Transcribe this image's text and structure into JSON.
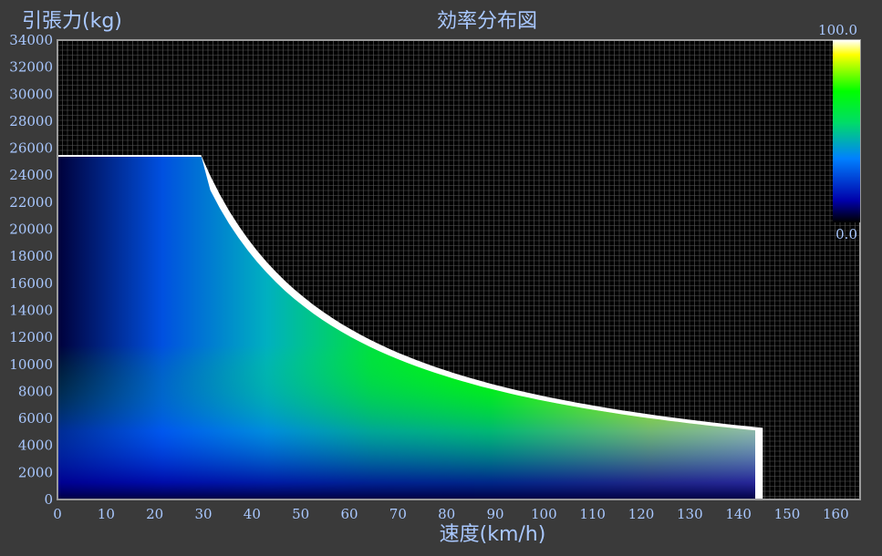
{
  "chart_data": {
    "type": "heatmap",
    "title": "効率分布図",
    "xlabel": "速度(km/h)",
    "ylabel": "引張力(kg)",
    "xlim": [
      0,
      165
    ],
    "ylim": [
      0,
      34000
    ],
    "x_ticks": [
      0,
      10,
      20,
      30,
      40,
      50,
      60,
      70,
      80,
      90,
      100,
      110,
      120,
      130,
      140,
      150,
      160
    ],
    "y_ticks": [
      0,
      2000,
      4000,
      6000,
      8000,
      10000,
      12000,
      14000,
      16000,
      18000,
      20000,
      22000,
      24000,
      26000,
      28000,
      30000,
      32000,
      34000
    ],
    "grid": true,
    "envelope": {
      "constant_force_kg": 25500,
      "constant_force_until_kmh": 29.5,
      "max_speed_kmh": 145,
      "force_at_max_speed_kg": 5300
    },
    "colorbar": {
      "min_label": "0.0",
      "max_label": "100.0",
      "colors": [
        "#000000",
        "#0000aa",
        "#0080ff",
        "#00dd66",
        "#00ff00",
        "#ffff00",
        "#ffffff"
      ]
    }
  }
}
